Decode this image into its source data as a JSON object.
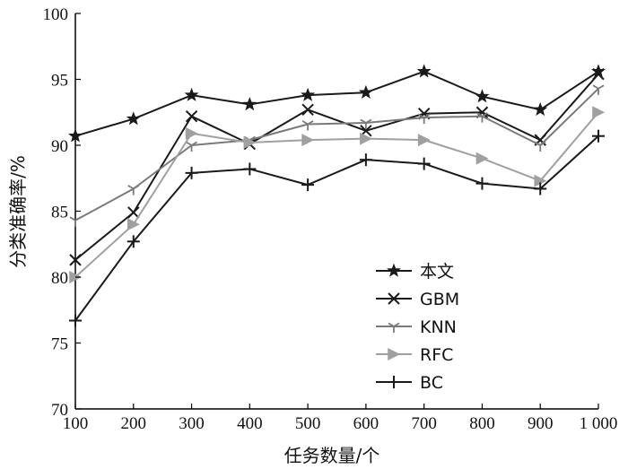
{
  "chart_data": {
    "type": "line",
    "title": "",
    "xlabel": "任务数量/个",
    "ylabel": "分类准确率/%",
    "x": [
      100,
      200,
      300,
      400,
      500,
      600,
      700,
      800,
      900,
      1000
    ],
    "x_tick_labels": [
      "100",
      "200",
      "300",
      "400",
      "500",
      "600",
      "700",
      "800",
      "900",
      "1 000"
    ],
    "ylim": [
      70,
      100
    ],
    "y_ticks": [
      70,
      75,
      80,
      85,
      90,
      95,
      100
    ],
    "grid": false,
    "legend_position": "bottom-center",
    "series": [
      {
        "name": "本文",
        "marker": "star",
        "color": "#1a1a1a",
        "values": [
          90.7,
          92.0,
          93.8,
          93.1,
          93.8,
          94.0,
          95.6,
          93.7,
          92.7,
          95.6
        ]
      },
      {
        "name": "GBM",
        "marker": "x",
        "color": "#1a1a1a",
        "values": [
          81.3,
          84.9,
          92.2,
          90.1,
          92.7,
          91.1,
          92.4,
          92.5,
          90.4,
          95.4
        ]
      },
      {
        "name": "KNN",
        "marker": "tri_down",
        "color": "#7a7a7a",
        "values": [
          84.3,
          86.7,
          90.0,
          90.4,
          91.6,
          91.7,
          92.1,
          92.2,
          90.0,
          94.3
        ]
      },
      {
        "name": "RFC",
        "marker": "triangle_right",
        "color": "#a0a0a0",
        "values": [
          80.0,
          84.0,
          90.9,
          90.2,
          90.4,
          90.5,
          90.4,
          89.0,
          87.3,
          92.5
        ]
      },
      {
        "name": "BC",
        "marker": "plus",
        "color": "#1a1a1a",
        "values": [
          76.7,
          82.7,
          87.9,
          88.2,
          87.0,
          88.9,
          88.6,
          87.1,
          86.7,
          90.7
        ]
      }
    ]
  }
}
